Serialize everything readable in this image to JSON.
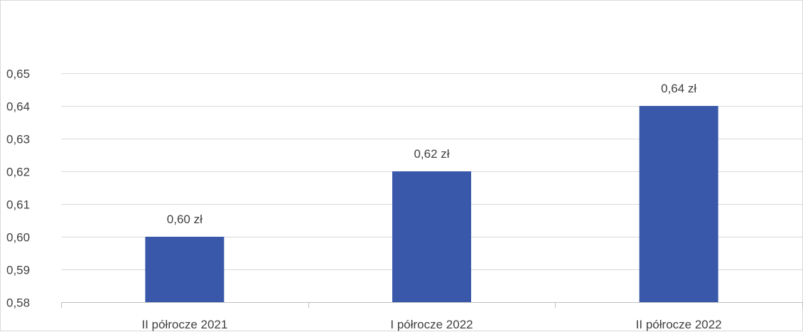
{
  "chart_data": {
    "type": "bar",
    "categories": [
      "II półrocze 2021",
      "I półrocze 2022",
      "II półrocze 2022"
    ],
    "values": [
      0.6,
      0.62,
      0.64
    ],
    "data_labels": [
      "0,60 zł",
      "0,62 zł",
      "0,64 zł"
    ],
    "title": "",
    "xlabel": "",
    "ylabel": "",
    "ylim": [
      0.58,
      0.65
    ],
    "y_ticks": [
      {
        "value": 0.58,
        "label": "0,58"
      },
      {
        "value": 0.59,
        "label": "0,59"
      },
      {
        "value": 0.6,
        "label": "0,60"
      },
      {
        "value": 0.61,
        "label": "0,61"
      },
      {
        "value": 0.62,
        "label": "0,62"
      },
      {
        "value": 0.63,
        "label": "0,63"
      },
      {
        "value": 0.64,
        "label": "0,64"
      },
      {
        "value": 0.65,
        "label": "0,65"
      }
    ],
    "grid": true,
    "legend": "none",
    "colors": {
      "bar": "#3a58a9",
      "grid": "#d9d9d9",
      "axis": "#bfbfbf",
      "text": "#404040"
    }
  }
}
